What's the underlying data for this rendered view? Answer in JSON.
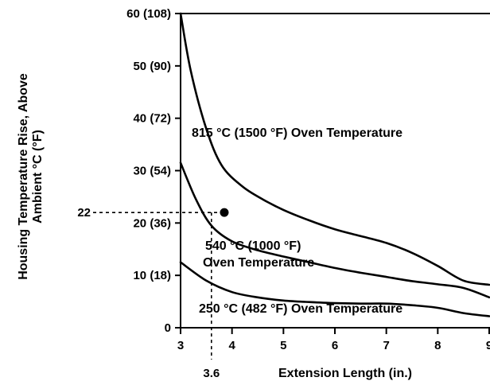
{
  "chart_data": {
    "type": "line",
    "title": "",
    "xlabel": "Extension Length (in.)",
    "ylabel_line1": "Housing Temperature Rise, Above",
    "ylabel_line2": "Ambient °C (°F)",
    "xlim": [
      3,
      9
    ],
    "ylim": [
      0,
      60
    ],
    "x_ticks": [
      3,
      4,
      5,
      6,
      7,
      8,
      9
    ],
    "x_tick_labels": [
      "3",
      "4",
      "5",
      "6",
      "7",
      "8",
      "9"
    ],
    "y_ticks": [
      0,
      10,
      20,
      30,
      40,
      50,
      60
    ],
    "y_tick_labels": [
      "0",
      "10 (18)",
      "20 (36)",
      "30 (54)",
      "40 (72)",
      "50 (90)",
      "60 (108)"
    ],
    "grid": false,
    "series": [
      {
        "name": "815 °C (1500 °F) Oven Temperature",
        "x": [
          3.0,
          3.2,
          3.5,
          3.8,
          4.2,
          4.6,
          5.0,
          5.5,
          6.0,
          6.5,
          7.0,
          7.5,
          8.0,
          8.5,
          9.0
        ],
        "y": [
          60,
          49,
          38,
          31,
          27,
          24.5,
          22.5,
          20.5,
          18.8,
          17.5,
          16.2,
          14.3,
          11.8,
          9.0,
          8.2
        ]
      },
      {
        "name": "540 °C (1000 °F) Oven Temperature",
        "x": [
          3.0,
          3.3,
          3.6,
          4.0,
          4.5,
          5.0,
          5.5,
          6.0,
          6.5,
          7.0,
          7.5,
          8.0,
          8.5,
          9.0
        ],
        "y": [
          31.5,
          24.5,
          19.5,
          16.5,
          14.8,
          13.6,
          12.5,
          11.4,
          10.5,
          9.7,
          8.9,
          8.3,
          7.6,
          5.8
        ]
      },
      {
        "name": "250 °C (482 °F) Oven Temperature",
        "x": [
          3.0,
          3.5,
          4.0,
          4.5,
          5.0,
          5.5,
          6.0,
          6.5,
          7.0,
          7.5,
          8.0,
          8.5,
          9.0
        ],
        "y": [
          12.5,
          9.0,
          6.8,
          5.8,
          5.2,
          4.9,
          4.7,
          4.6,
          4.6,
          4.3,
          3.8,
          2.8,
          2.2
        ]
      }
    ],
    "annotations": {
      "label_815": "815 °C (1500 °F) Oven Temperature",
      "label_540_line1": "540 °C (1000 °F)",
      "label_540_line2": "Oven Temperature",
      "label_250": "250 °C (482 °F) Oven Temperature",
      "marker": {
        "x": 3.85,
        "y": 22
      },
      "guide_y_value": 22,
      "guide_y_label": "22",
      "guide_x_value": 3.6,
      "guide_x_label": "3.6"
    }
  }
}
